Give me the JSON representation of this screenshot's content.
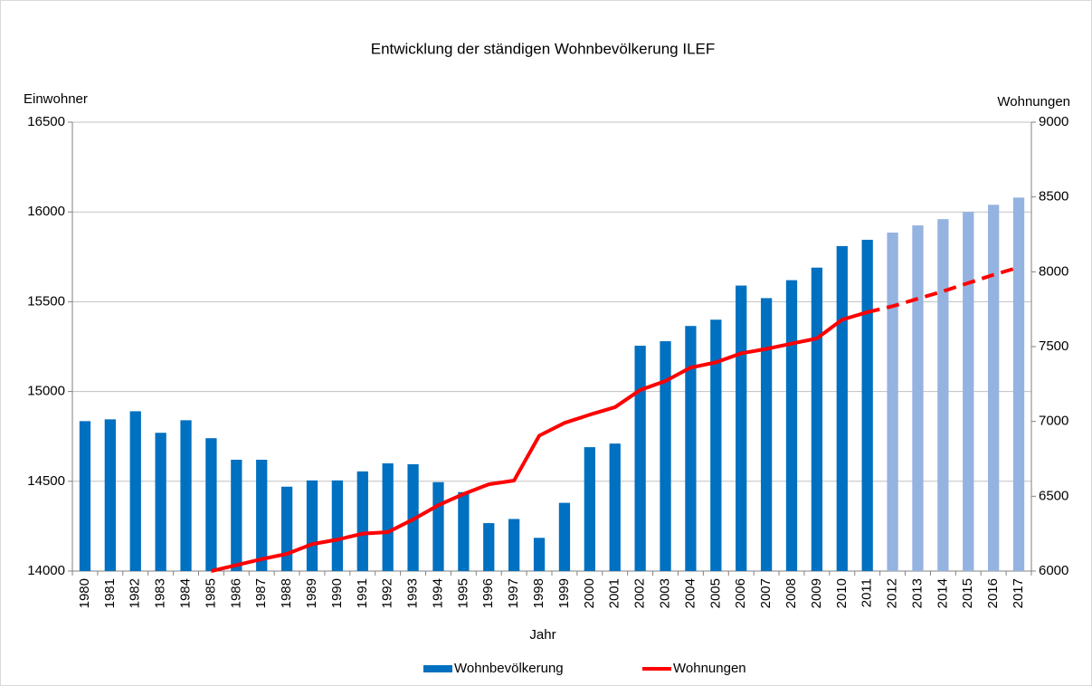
{
  "chart_data": {
    "type": "bar_line",
    "title": "Entwicklung  der ständigen Wohnbevölkerung ILEF",
    "y_label": "Einwohner",
    "y2_label": "Wohnungen",
    "x_label": "Jahr",
    "categories": [
      "1980",
      "1981",
      "1982",
      "1983",
      "1984",
      "1985",
      "1986",
      "1987",
      "1988",
      "1989",
      "1990",
      "1991",
      "1992",
      "1993",
      "1994",
      "1995",
      "1996",
      "1997",
      "1998",
      "1999",
      "2000",
      "2001",
      "2002",
      "2003",
      "2004",
      "2005",
      "2006",
      "2007",
      "2008",
      "2009",
      "2010",
      "2011",
      "2012",
      "2013",
      "2014",
      "2015",
      "2016",
      "2017"
    ],
    "series": [
      {
        "name": "Wohnbevölkerung",
        "type": "bar",
        "color": "#0070c0",
        "colors": [
          "#0070c0",
          "#0070c0",
          "#0070c0",
          "#0070c0",
          "#0070c0",
          "#0070c0",
          "#0070c0",
          "#0070c0",
          "#0070c0",
          "#0070c0",
          "#0070c0",
          "#0070c0",
          "#0070c0",
          "#0070c0",
          "#0070c0",
          "#0070c0",
          "#0070c0",
          "#0070c0",
          "#0070c0",
          "#0070c0",
          "#0070c0",
          "#0070c0",
          "#0070c0",
          "#0070c0",
          "#0070c0",
          "#0070c0",
          "#0070c0",
          "#0070c0",
          "#0070c0",
          "#0070c0",
          "#0070c0",
          "#0070c0",
          "#95b3e0",
          "#95b3e0",
          "#95b3e0",
          "#95b3e0",
          "#95b3e0",
          "#95b3e0"
        ],
        "values": [
          14835,
          14845,
          14890,
          14770,
          14840,
          14740,
          14620,
          14620,
          14470,
          14505,
          14505,
          14555,
          14600,
          14595,
          14495,
          14440,
          14267,
          14290,
          14185,
          14380,
          14690,
          14710,
          15255,
          15280,
          15365,
          15400,
          15590,
          15520,
          15620,
          15690,
          15810,
          15845,
          15885,
          15925,
          15960,
          16000,
          16040,
          16080
        ]
      },
      {
        "name": "Wohnungen",
        "type": "line",
        "axis": "y2",
        "color": "#ff0000",
        "dashed_from": "2011",
        "values": [
          null,
          null,
          null,
          null,
          null,
          6000,
          6040,
          6080,
          6115,
          6180,
          6210,
          6250,
          6260,
          6345,
          6440,
          6515,
          6580,
          6605,
          6905,
          6990,
          7045,
          7095,
          7210,
          7270,
          7360,
          7395,
          7455,
          7485,
          7520,
          7555,
          7680,
          7730,
          7770,
          7820,
          7870,
          7925,
          7980,
          8030
        ]
      }
    ],
    "ylim": [
      14000,
      16500
    ],
    "yticks": [
      14000,
      14500,
      15000,
      15500,
      16000,
      16500
    ],
    "y2lim": [
      6000,
      9000
    ],
    "y2ticks": [
      6000,
      6500,
      7000,
      7500,
      8000,
      8500,
      9000
    ],
    "grid": true,
    "legend": "bottom"
  }
}
